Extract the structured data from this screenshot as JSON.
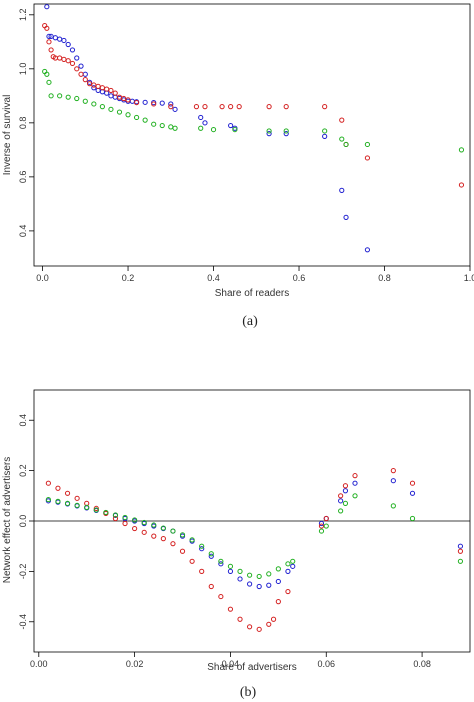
{
  "captions": [
    "(a)",
    "(b)"
  ],
  "chart_data": [
    {
      "type": "scatter",
      "title": "",
      "caption": "(a)",
      "xlabel": "Share of readers",
      "ylabel": "Inverse of survival",
      "xlim": [
        -0.02,
        1.0
      ],
      "ylim": [
        0.27,
        1.24
      ],
      "xticks": [
        0.0,
        0.2,
        0.4,
        0.6,
        0.8,
        1.0
      ],
      "xtick_labels": [
        "0.0",
        "0.2",
        "0.4",
        "0.6",
        "0.8",
        "1.0"
      ],
      "yticks": [
        0.4,
        0.6,
        0.8,
        1.0,
        1.2
      ],
      "ytick_labels": [
        "0.4",
        "0.6",
        "0.8",
        "1.0",
        "1.2"
      ],
      "grid": false,
      "legend": "none",
      "series": [
        {
          "color": "#2020d0",
          "points": [
            [
              0.01,
              1.23
            ],
            [
              0.015,
              1.12
            ],
            [
              0.02,
              1.12
            ],
            [
              0.03,
              1.115
            ],
            [
              0.04,
              1.11
            ],
            [
              0.05,
              1.105
            ],
            [
              0.06,
              1.09
            ],
            [
              0.07,
              1.07
            ],
            [
              0.08,
              1.04
            ],
            [
              0.09,
              1.01
            ],
            [
              0.1,
              0.98
            ],
            [
              0.11,
              0.95
            ],
            [
              0.12,
              0.93
            ],
            [
              0.13,
              0.92
            ],
            [
              0.14,
              0.915
            ],
            [
              0.15,
              0.91
            ],
            [
              0.16,
              0.9
            ],
            [
              0.17,
              0.895
            ],
            [
              0.18,
              0.89
            ],
            [
              0.19,
              0.885
            ],
            [
              0.2,
              0.88
            ],
            [
              0.21,
              0.88
            ],
            [
              0.22,
              0.878
            ],
            [
              0.24,
              0.876
            ],
            [
              0.26,
              0.875
            ],
            [
              0.28,
              0.873
            ],
            [
              0.3,
              0.87
            ],
            [
              0.31,
              0.85
            ],
            [
              0.37,
              0.82
            ],
            [
              0.38,
              0.8
            ],
            [
              0.44,
              0.79
            ],
            [
              0.45,
              0.78
            ],
            [
              0.53,
              0.76
            ],
            [
              0.57,
              0.76
            ],
            [
              0.66,
              0.75
            ],
            [
              0.7,
              0.55
            ],
            [
              0.71,
              0.45
            ],
            [
              0.76,
              0.33
            ]
          ]
        },
        {
          "color": "#d42020",
          "points": [
            [
              0.005,
              1.16
            ],
            [
              0.01,
              1.15
            ],
            [
              0.015,
              1.1
            ],
            [
              0.02,
              1.07
            ],
            [
              0.025,
              1.045
            ],
            [
              0.03,
              1.04
            ],
            [
              0.04,
              1.04
            ],
            [
              0.05,
              1.035
            ],
            [
              0.06,
              1.03
            ],
            [
              0.07,
              1.02
            ],
            [
              0.08,
              1.0
            ],
            [
              0.09,
              0.98
            ],
            [
              0.1,
              0.96
            ],
            [
              0.11,
              0.945
            ],
            [
              0.12,
              0.94
            ],
            [
              0.13,
              0.935
            ],
            [
              0.14,
              0.93
            ],
            [
              0.15,
              0.925
            ],
            [
              0.16,
              0.92
            ],
            [
              0.17,
              0.91
            ],
            [
              0.18,
              0.895
            ],
            [
              0.19,
              0.89
            ],
            [
              0.2,
              0.885
            ],
            [
              0.22,
              0.875
            ],
            [
              0.26,
              0.87
            ],
            [
              0.3,
              0.86
            ],
            [
              0.36,
              0.86
            ],
            [
              0.38,
              0.86
            ],
            [
              0.42,
              0.86
            ],
            [
              0.44,
              0.86
            ],
            [
              0.46,
              0.86
            ],
            [
              0.53,
              0.86
            ],
            [
              0.57,
              0.86
            ],
            [
              0.66,
              0.86
            ],
            [
              0.7,
              0.81
            ],
            [
              0.71,
              0.72
            ],
            [
              0.76,
              0.67
            ],
            [
              0.98,
              0.57
            ]
          ]
        },
        {
          "color": "#20b020",
          "points": [
            [
              0.005,
              0.99
            ],
            [
              0.01,
              0.98
            ],
            [
              0.015,
              0.95
            ],
            [
              0.02,
              0.9
            ],
            [
              0.04,
              0.9
            ],
            [
              0.06,
              0.895
            ],
            [
              0.08,
              0.89
            ],
            [
              0.1,
              0.88
            ],
            [
              0.12,
              0.87
            ],
            [
              0.14,
              0.86
            ],
            [
              0.16,
              0.85
            ],
            [
              0.18,
              0.84
            ],
            [
              0.2,
              0.83
            ],
            [
              0.22,
              0.82
            ],
            [
              0.24,
              0.81
            ],
            [
              0.26,
              0.795
            ],
            [
              0.28,
              0.79
            ],
            [
              0.3,
              0.785
            ],
            [
              0.31,
              0.78
            ],
            [
              0.37,
              0.78
            ],
            [
              0.4,
              0.775
            ],
            [
              0.45,
              0.775
            ],
            [
              0.53,
              0.77
            ],
            [
              0.57,
              0.77
            ],
            [
              0.66,
              0.77
            ],
            [
              0.7,
              0.74
            ],
            [
              0.71,
              0.72
            ],
            [
              0.76,
              0.72
            ],
            [
              0.98,
              0.7
            ]
          ]
        }
      ]
    },
    {
      "type": "scatter",
      "title": "",
      "caption": "(b)",
      "xlabel": "Share of advertisers",
      "ylabel": "Network effect of advertisers",
      "xlim": [
        -0.001,
        0.09
      ],
      "ylim": [
        -0.52,
        0.52
      ],
      "xticks": [
        0.0,
        0.02,
        0.04,
        0.06,
        0.08
      ],
      "xtick_labels": [
        "0.00",
        "0.02",
        "0.04",
        "0.06",
        "0.08"
      ],
      "yticks": [
        -0.4,
        -0.2,
        0.0,
        0.2,
        0.4
      ],
      "ytick_labels": [
        "-0.4",
        "-0.2",
        "0.0",
        "0.2",
        "0.4"
      ],
      "hline": 0.0,
      "grid": false,
      "legend": "none",
      "series": [
        {
          "color": "#2020d0",
          "points": [
            [
              0.002,
              0.08
            ],
            [
              0.004,
              0.075
            ],
            [
              0.006,
              0.068
            ],
            [
              0.008,
              0.06
            ],
            [
              0.01,
              0.052
            ],
            [
              0.012,
              0.042
            ],
            [
              0.014,
              0.032
            ],
            [
              0.016,
              0.022
            ],
            [
              0.018,
              0.01
            ],
            [
              0.02,
              0.0
            ],
            [
              0.022,
              -0.01
            ],
            [
              0.024,
              -0.02
            ],
            [
              0.026,
              -0.03
            ],
            [
              0.028,
              -0.04
            ],
            [
              0.03,
              -0.06
            ],
            [
              0.032,
              -0.08
            ],
            [
              0.034,
              -0.11
            ],
            [
              0.036,
              -0.14
            ],
            [
              0.038,
              -0.17
            ],
            [
              0.04,
              -0.2
            ],
            [
              0.042,
              -0.23
            ],
            [
              0.044,
              -0.25
            ],
            [
              0.046,
              -0.26
            ],
            [
              0.048,
              -0.255
            ],
            [
              0.05,
              -0.24
            ],
            [
              0.052,
              -0.2
            ],
            [
              0.053,
              -0.18
            ],
            [
              0.059,
              -0.01
            ],
            [
              0.06,
              0.01
            ],
            [
              0.063,
              0.08
            ],
            [
              0.064,
              0.12
            ],
            [
              0.066,
              0.15
            ],
            [
              0.074,
              0.16
            ],
            [
              0.078,
              0.11
            ],
            [
              0.088,
              -0.1
            ]
          ]
        },
        {
          "color": "#d42020",
          "points": [
            [
              0.002,
              0.15
            ],
            [
              0.004,
              0.13
            ],
            [
              0.006,
              0.11
            ],
            [
              0.008,
              0.09
            ],
            [
              0.01,
              0.07
            ],
            [
              0.012,
              0.05
            ],
            [
              0.014,
              0.03
            ],
            [
              0.016,
              0.01
            ],
            [
              0.018,
              -0.01
            ],
            [
              0.02,
              -0.03
            ],
            [
              0.022,
              -0.045
            ],
            [
              0.024,
              -0.06
            ],
            [
              0.026,
              -0.07
            ],
            [
              0.028,
              -0.09
            ],
            [
              0.03,
              -0.12
            ],
            [
              0.032,
              -0.16
            ],
            [
              0.034,
              -0.2
            ],
            [
              0.036,
              -0.26
            ],
            [
              0.038,
              -0.3
            ],
            [
              0.04,
              -0.35
            ],
            [
              0.042,
              -0.39
            ],
            [
              0.044,
              -0.42
            ],
            [
              0.046,
              -0.43
            ],
            [
              0.048,
              -0.41
            ],
            [
              0.049,
              -0.39
            ],
            [
              0.05,
              -0.32
            ],
            [
              0.052,
              -0.28
            ],
            [
              0.059,
              -0.02
            ],
            [
              0.06,
              0.01
            ],
            [
              0.063,
              0.1
            ],
            [
              0.064,
              0.14
            ],
            [
              0.066,
              0.18
            ],
            [
              0.074,
              0.2
            ],
            [
              0.078,
              0.15
            ],
            [
              0.088,
              -0.12
            ]
          ]
        },
        {
          "color": "#20b020",
          "points": [
            [
              0.002,
              0.085
            ],
            [
              0.004,
              0.078
            ],
            [
              0.006,
              0.07
            ],
            [
              0.008,
              0.062
            ],
            [
              0.01,
              0.054
            ],
            [
              0.012,
              0.044
            ],
            [
              0.014,
              0.034
            ],
            [
              0.016,
              0.024
            ],
            [
              0.018,
              0.014
            ],
            [
              0.02,
              0.004
            ],
            [
              0.022,
              -0.006
            ],
            [
              0.024,
              -0.016
            ],
            [
              0.026,
              -0.028
            ],
            [
              0.028,
              -0.04
            ],
            [
              0.03,
              -0.055
            ],
            [
              0.032,
              -0.075
            ],
            [
              0.034,
              -0.1
            ],
            [
              0.036,
              -0.13
            ],
            [
              0.038,
              -0.16
            ],
            [
              0.04,
              -0.18
            ],
            [
              0.042,
              -0.2
            ],
            [
              0.044,
              -0.215
            ],
            [
              0.046,
              -0.22
            ],
            [
              0.048,
              -0.21
            ],
            [
              0.05,
              -0.19
            ],
            [
              0.052,
              -0.17
            ],
            [
              0.053,
              -0.16
            ],
            [
              0.059,
              -0.04
            ],
            [
              0.06,
              -0.02
            ],
            [
              0.063,
              0.04
            ],
            [
              0.064,
              0.07
            ],
            [
              0.066,
              0.1
            ],
            [
              0.074,
              0.06
            ],
            [
              0.078,
              0.01
            ],
            [
              0.088,
              -0.16
            ]
          ]
        }
      ]
    }
  ]
}
